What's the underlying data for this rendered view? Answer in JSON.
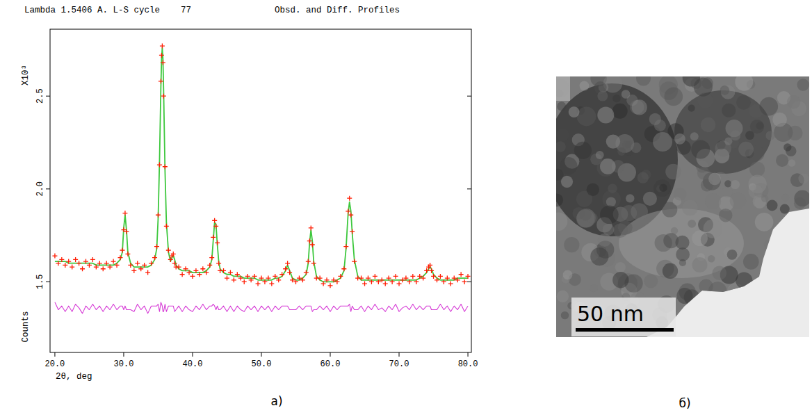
{
  "chart_data": {
    "type": "line",
    "title": "Lambda 1.5406 A. L-S cycle    77",
    "subtitle": "Obsd. and Diff. Profiles",
    "xlabel": "2θ, deg",
    "ylabel": "Counts",
    "y_multiplier": "X10³",
    "xlim": [
      19.3,
      80.5
    ],
    "ylim": [
      1.12,
      2.86
    ],
    "xticks": [
      {
        "value": 20,
        "label": "20.0"
      },
      {
        "value": 30,
        "label": "30.0"
      },
      {
        "value": 40,
        "label": "40.0"
      },
      {
        "value": 50,
        "label": "50.0"
      },
      {
        "value": 60,
        "label": "60.0"
      },
      {
        "value": 70,
        "label": "70.0"
      },
      {
        "value": 80,
        "label": "80.0"
      }
    ],
    "yticks": [
      1.5,
      {
        "value": 2,
        "label": "2.0"
      },
      2.5
    ],
    "grid": false,
    "x": [
      20.0,
      20.5,
      21.0,
      21.5,
      22.0,
      22.5,
      23.0,
      23.5,
      24.0,
      24.5,
      25.0,
      25.5,
      26.0,
      26.5,
      27.0,
      27.5,
      28.0,
      28.5,
      29.0,
      29.5,
      29.8,
      30.0,
      30.2,
      30.4,
      30.6,
      31.0,
      31.5,
      32.0,
      32.5,
      33.0,
      33.5,
      34.0,
      34.5,
      34.8,
      35.0,
      35.2,
      35.4,
      35.5,
      35.6,
      35.7,
      35.8,
      36.0,
      36.2,
      36.5,
      36.8,
      37.0,
      37.2,
      37.4,
      37.6,
      38.0,
      38.5,
      39.0,
      39.5,
      40.0,
      40.5,
      41.0,
      41.5,
      42.0,
      42.5,
      42.8,
      43.0,
      43.2,
      43.4,
      43.6,
      43.8,
      44.0,
      44.5,
      45.0,
      45.5,
      46.0,
      46.5,
      47.0,
      47.5,
      48.0,
      48.5,
      49.0,
      49.5,
      50.0,
      50.5,
      51.0,
      51.5,
      52.0,
      52.5,
      53.0,
      53.5,
      53.8,
      54.1,
      54.5,
      55.0,
      55.5,
      56.0,
      56.5,
      56.8,
      57.0,
      57.2,
      57.4,
      57.6,
      58.0,
      58.5,
      59.0,
      59.5,
      60.0,
      60.5,
      61.0,
      61.5,
      62.0,
      62.3,
      62.6,
      62.8,
      63.0,
      63.2,
      63.5,
      64.0,
      64.5,
      65.0,
      65.5,
      66.0,
      66.5,
      67.0,
      67.5,
      68.0,
      68.5,
      69.0,
      69.5,
      70.0,
      70.5,
      71.0,
      71.5,
      72.0,
      72.5,
      73.0,
      73.5,
      74.0,
      74.3,
      74.5,
      74.7,
      75.0,
      75.5,
      76.0,
      76.5,
      77.0,
      77.5,
      78.0,
      78.5,
      79.0,
      79.5,
      80.0
    ],
    "series": [
      {
        "type": "line",
        "color": "#3ec83e",
        "line_style": "solid",
        "values": [
          1.61,
          1.61,
          1.61,
          1.61,
          1.6,
          1.6,
          1.6,
          1.6,
          1.6,
          1.6,
          1.6,
          1.6,
          1.59,
          1.59,
          1.59,
          1.59,
          1.59,
          1.59,
          1.6,
          1.62,
          1.66,
          1.79,
          1.86,
          1.78,
          1.66,
          1.6,
          1.58,
          1.58,
          1.58,
          1.58,
          1.58,
          1.59,
          1.62,
          1.68,
          1.84,
          2.15,
          2.55,
          2.7,
          2.76,
          2.7,
          2.52,
          2.1,
          1.82,
          1.66,
          1.61,
          1.63,
          1.64,
          1.62,
          1.59,
          1.57,
          1.56,
          1.56,
          1.56,
          1.55,
          1.55,
          1.55,
          1.55,
          1.56,
          1.58,
          1.62,
          1.72,
          1.82,
          1.81,
          1.7,
          1.61,
          1.57,
          1.55,
          1.54,
          1.54,
          1.53,
          1.53,
          1.53,
          1.52,
          1.52,
          1.52,
          1.52,
          1.51,
          1.51,
          1.51,
          1.51,
          1.51,
          1.52,
          1.52,
          1.53,
          1.56,
          1.59,
          1.56,
          1.52,
          1.51,
          1.51,
          1.52,
          1.54,
          1.6,
          1.71,
          1.78,
          1.72,
          1.61,
          1.53,
          1.51,
          1.5,
          1.5,
          1.5,
          1.5,
          1.51,
          1.52,
          1.56,
          1.68,
          1.87,
          1.93,
          1.88,
          1.76,
          1.62,
          1.53,
          1.51,
          1.51,
          1.51,
          1.51,
          1.51,
          1.51,
          1.51,
          1.51,
          1.51,
          1.51,
          1.51,
          1.51,
          1.51,
          1.51,
          1.51,
          1.51,
          1.51,
          1.52,
          1.53,
          1.55,
          1.57,
          1.58,
          1.57,
          1.54,
          1.52,
          1.51,
          1.51,
          1.51,
          1.51,
          1.51,
          1.52,
          1.52,
          1.52,
          1.52
        ]
      },
      {
        "type": "scatter",
        "color": "#ff1a00",
        "marker": "plus",
        "values": [
          1.64,
          1.6,
          1.62,
          1.59,
          1.61,
          1.58,
          1.62,
          1.6,
          1.57,
          1.61,
          1.59,
          1.62,
          1.58,
          1.6,
          1.57,
          1.6,
          1.58,
          1.61,
          1.59,
          1.63,
          1.67,
          1.78,
          1.87,
          1.77,
          1.65,
          1.59,
          1.56,
          1.6,
          1.57,
          1.59,
          1.55,
          1.6,
          1.63,
          1.69,
          1.86,
          2.13,
          2.58,
          2.72,
          2.77,
          2.68,
          2.5,
          2.12,
          1.8,
          1.67,
          1.62,
          1.64,
          1.65,
          1.6,
          1.58,
          1.58,
          1.54,
          1.57,
          1.55,
          1.53,
          1.56,
          1.54,
          1.57,
          1.55,
          1.59,
          1.63,
          1.74,
          1.83,
          1.8,
          1.71,
          1.6,
          1.56,
          1.56,
          1.52,
          1.55,
          1.51,
          1.54,
          1.52,
          1.5,
          1.53,
          1.51,
          1.53,
          1.49,
          1.52,
          1.5,
          1.52,
          1.49,
          1.53,
          1.51,
          1.54,
          1.57,
          1.6,
          1.55,
          1.51,
          1.5,
          1.52,
          1.51,
          1.55,
          1.61,
          1.72,
          1.79,
          1.7,
          1.6,
          1.52,
          1.52,
          1.49,
          1.51,
          1.48,
          1.51,
          1.5,
          1.53,
          1.57,
          1.69,
          1.88,
          1.95,
          1.86,
          1.77,
          1.61,
          1.52,
          1.52,
          1.49,
          1.52,
          1.5,
          1.53,
          1.5,
          1.51,
          1.49,
          1.52,
          1.5,
          1.53,
          1.49,
          1.51,
          1.52,
          1.5,
          1.53,
          1.5,
          1.53,
          1.52,
          1.56,
          1.58,
          1.59,
          1.56,
          1.53,
          1.51,
          1.53,
          1.5,
          1.52,
          1.49,
          1.52,
          1.51,
          1.54,
          1.5,
          1.53
        ]
      },
      {
        "type": "line",
        "color": "#d63cd6",
        "line_style": "solid",
        "values": [
          1.39,
          1.35,
          1.37,
          1.34,
          1.37,
          1.34,
          1.38,
          1.36,
          1.33,
          1.37,
          1.35,
          1.38,
          1.35,
          1.37,
          1.34,
          1.37,
          1.35,
          1.38,
          1.35,
          1.37,
          1.37,
          1.35,
          1.37,
          1.35,
          1.35,
          1.35,
          1.34,
          1.38,
          1.35,
          1.37,
          1.33,
          1.37,
          1.37,
          1.37,
          1.38,
          1.34,
          1.39,
          1.38,
          1.37,
          1.34,
          1.34,
          1.38,
          1.34,
          1.37,
          1.37,
          1.37,
          1.37,
          1.34,
          1.35,
          1.37,
          1.34,
          1.37,
          1.35,
          1.34,
          1.37,
          1.35,
          1.38,
          1.35,
          1.37,
          1.37,
          1.38,
          1.37,
          1.35,
          1.37,
          1.35,
          1.35,
          1.37,
          1.34,
          1.37,
          1.34,
          1.37,
          1.35,
          1.34,
          1.37,
          1.35,
          1.37,
          1.34,
          1.37,
          1.35,
          1.37,
          1.34,
          1.37,
          1.35,
          1.37,
          1.37,
          1.37,
          1.35,
          1.35,
          1.35,
          1.37,
          1.35,
          1.37,
          1.37,
          1.37,
          1.37,
          1.34,
          1.35,
          1.35,
          1.37,
          1.35,
          1.37,
          1.34,
          1.37,
          1.35,
          1.37,
          1.37,
          1.37,
          1.37,
          1.38,
          1.34,
          1.37,
          1.35,
          1.35,
          1.37,
          1.34,
          1.37,
          1.35,
          1.38,
          1.35,
          1.36,
          1.34,
          1.37,
          1.35,
          1.38,
          1.34,
          1.36,
          1.37,
          1.35,
          1.38,
          1.35,
          1.37,
          1.35,
          1.37,
          1.37,
          1.37,
          1.35,
          1.35,
          1.35,
          1.38,
          1.35,
          1.37,
          1.34,
          1.37,
          1.35,
          1.38,
          1.34,
          1.37
        ]
      }
    ]
  },
  "panel_labels": [
    "а)",
    "б)"
  ],
  "micrograph": {
    "scale_bar_label": "50 nm"
  }
}
